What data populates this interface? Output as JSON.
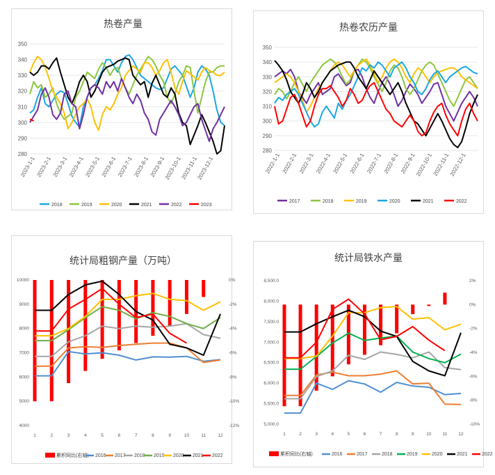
{
  "chart_data": [
    {
      "id": "c1",
      "type": "line",
      "title": "热卷产量",
      "xlabel": "",
      "ylabel": "",
      "x_ticks": [
        "2023-1-1",
        "2023-2-1",
        "2023-3-1",
        "2023-4-1",
        "2023-5-1",
        "2023-6-1",
        "2023-7-1",
        "2023-8-1",
        "2023-9-1",
        "2023-10-1",
        "2023-11-1",
        "2023-12-1"
      ],
      "ylim": [
        280,
        350
      ],
      "yticks": [
        280,
        290,
        300,
        310,
        320,
        330,
        340,
        350
      ],
      "grid": true,
      "legend": "bottom",
      "n_points": 52,
      "series": [
        {
          "name": "2018",
          "color": "#1aa7e0",
          "values": [
            306,
            308,
            316,
            322,
            312,
            310,
            314,
            318,
            320,
            319,
            312,
            304,
            300,
            297,
            310,
            316,
            322,
            324,
            328,
            333,
            340,
            340,
            336,
            332,
            338,
            342,
            343,
            340,
            335,
            330,
            328,
            326,
            324,
            322,
            321,
            322,
            328,
            334,
            336,
            333,
            330,
            323,
            316,
            322,
            332,
            336,
            334,
            330,
            320,
            308,
            300,
            298
          ]
        },
        {
          "name": "2019",
          "color": "#8cc63f",
          "values": [
            318,
            326,
            322,
            324,
            316,
            318,
            322,
            312,
            306,
            302,
            304,
            306,
            316,
            320,
            326,
            332,
            330,
            328,
            334,
            338,
            335,
            330,
            334,
            335,
            328,
            322,
            318,
            324,
            330,
            334,
            338,
            342,
            340,
            336,
            330,
            326,
            316,
            312,
            318,
            326,
            330,
            336,
            335,
            320,
            306,
            316,
            326,
            332,
            332,
            335,
            336,
            336
          ]
        },
        {
          "name": "2020",
          "color": "#ffc000",
          "values": [
            332,
            338,
            342,
            340,
            335,
            328,
            320,
            316,
            312,
            306,
            296,
            300,
            305,
            310,
            312,
            315,
            310,
            300,
            295,
            305,
            310,
            308,
            312,
            318,
            322,
            330,
            333,
            336,
            334,
            332,
            338,
            338,
            335,
            330,
            333,
            338,
            340,
            332,
            322,
            318,
            326,
            333,
            331,
            329,
            327,
            332,
            335,
            333,
            332,
            330,
            330,
            332
          ]
        },
        {
          "name": "2021",
          "color": "#000000",
          "values": [
            332,
            330,
            332,
            336,
            336,
            334,
            338,
            341,
            332,
            324,
            316,
            312,
            318,
            326,
            330,
            326,
            316,
            320,
            326,
            332,
            335,
            336,
            337,
            339,
            340,
            341,
            340,
            330,
            327,
            324,
            326,
            316,
            325,
            330,
            324,
            318,
            316,
            322,
            318,
            306,
            300,
            298,
            286,
            292,
            298,
            305,
            300,
            294,
            288,
            280,
            282,
            298
          ]
        },
        {
          "name": "2022",
          "color": "#7030a0",
          "values": [
            300,
            304,
            308,
            318,
            322,
            316,
            305,
            302,
            306,
            318,
            320,
            312,
            310,
            296,
            305,
            316,
            322,
            324,
            322,
            318,
            326,
            322,
            326,
            320,
            328,
            322,
            316,
            312,
            318,
            314,
            306,
            302,
            294,
            292,
            302,
            306,
            310,
            314,
            310,
            305,
            298,
            300,
            305,
            310,
            312,
            302,
            295,
            288,
            296,
            300,
            305,
            310
          ]
        },
        {
          "name": "2023",
          "color": "#ff0000",
          "values": [
            302,
            301
          ]
        }
      ]
    },
    {
      "id": "c2",
      "type": "line",
      "title": "热卷农历产量",
      "xlabel": "",
      "ylabel": "",
      "x_ticks": [
        "2022-1-1",
        "2022-2-1",
        "2022-3-1",
        "2022-4-1",
        "2022-5-1",
        "2022-6-1",
        "2022-7-1",
        "2022-8-1",
        "2022-9-1",
        "2022-10-1",
        "2022-11-1",
        "2022-12-1"
      ],
      "ylim": [
        280,
        350
      ],
      "yticks": [
        280,
        290,
        300,
        310,
        320,
        330,
        340,
        350
      ],
      "grid": true,
      "legend": "bottom",
      "n_points": 52,
      "series": [
        {
          "name": "2017",
          "color": "#7030a0",
          "values": [
            330,
            332,
            334,
            332,
            335,
            330,
            320,
            316,
            312,
            318,
            322,
            326,
            318,
            320,
            322,
            330,
            332,
            328,
            324,
            326,
            334,
            335,
            330,
            322,
            316,
            312,
            320,
            326,
            330,
            325,
            318,
            310,
            314,
            320,
            325,
            322,
            318,
            312,
            316,
            320,
            325,
            326,
            318,
            310,
            305,
            300,
            306,
            312,
            316,
            320,
            316,
            310
          ]
        },
        {
          "name": "2018",
          "color": "#8cc63f",
          "values": [
            318,
            322,
            320,
            315,
            320,
            326,
            330,
            325,
            320,
            326,
            330,
            334,
            338,
            340,
            342,
            340,
            336,
            330,
            325,
            328,
            334,
            338,
            342,
            340,
            336,
            330,
            325,
            320,
            326,
            334,
            338,
            336,
            330,
            322,
            318,
            322,
            328,
            334,
            338,
            340,
            338,
            332,
            326,
            320,
            314,
            310,
            316,
            322,
            328,
            330,
            326,
            322
          ]
        },
        {
          "name": "2019",
          "color": "#ffc000",
          "values": [
            326,
            328,
            330,
            332,
            330,
            326,
            320,
            314,
            306,
            310,
            316,
            322,
            326,
            330,
            334,
            338,
            340,
            338,
            334,
            330,
            334,
            338,
            340,
            342,
            338,
            332,
            326,
            330,
            336,
            340,
            342,
            340,
            336,
            330,
            326,
            332,
            336,
            334,
            330,
            326,
            330,
            333,
            334,
            335,
            336,
            336,
            334,
            330,
            328,
            326,
            324,
            322
          ]
        },
        {
          "name": "2020",
          "color": "#1aa7e0",
          "values": [
            312,
            316,
            314,
            318,
            320,
            322,
            318,
            312,
            306,
            300,
            296,
            298,
            306,
            310,
            306,
            302,
            312,
            308,
            314,
            318,
            324,
            330,
            336,
            334,
            338,
            336,
            340,
            338,
            334,
            330,
            336,
            338,
            340,
            336,
            330,
            326,
            320,
            318,
            322,
            328,
            332,
            334,
            330,
            326,
            330,
            332,
            334,
            336,
            337,
            335,
            333,
            332
          ]
        },
        {
          "name": "2021",
          "color": "#000000",
          "values": [
            341,
            338,
            334,
            328,
            320,
            316,
            312,
            318,
            326,
            322,
            316,
            320,
            326,
            330,
            334,
            336,
            338,
            339,
            340,
            340,
            336,
            330,
            326,
            322,
            328,
            334,
            330,
            326,
            322,
            318,
            322,
            326,
            320,
            312,
            306,
            300,
            298,
            294,
            290,
            295,
            300,
            305,
            300,
            294,
            288,
            284,
            282,
            286,
            295,
            305,
            312,
            318
          ]
        },
        {
          "name": "2022",
          "color": "#ff0000",
          "values": [
            310,
            298,
            300,
            308,
            316,
            318,
            312,
            304,
            296,
            300,
            310,
            318,
            322,
            322,
            324,
            320,
            316,
            310,
            314,
            322,
            318,
            312,
            314,
            320,
            324,
            326,
            320,
            314,
            308,
            305,
            300,
            298,
            296,
            300,
            304,
            300,
            293,
            290,
            292,
            300,
            306,
            310,
            312,
            304,
            298,
            294,
            290,
            300,
            308,
            312,
            305,
            300
          ]
        }
      ]
    },
    {
      "id": "c3",
      "type": "bar+line",
      "title": "统计局粗钢产量（万吨）",
      "xlabel": "",
      "ylabel": "",
      "categories": [
        "1",
        "2",
        "3",
        "4",
        "5",
        "6",
        "7",
        "8",
        "9",
        "10",
        "11",
        "12"
      ],
      "ylim": [
        4000,
        10000
      ],
      "yticks": [
        4000,
        5000,
        6000,
        7000,
        8000,
        9000,
        10000
      ],
      "y2lim": [
        -12,
        0
      ],
      "y2ticks": [
        "-12%",
        "-10%",
        "-8%",
        "-6%",
        "-4%",
        "-2%",
        "0%"
      ],
      "grid": false,
      "legend": "bottom",
      "bar_series": {
        "name": "累积同比(右轴)",
        "color": "#ff0000",
        "values": [
          -10,
          -10,
          -8.5,
          -7.5,
          -6.5,
          -5.8,
          -5.2,
          -4.6,
          -3.8,
          -2.8,
          -1.4,
          null
        ]
      },
      "series": [
        {
          "name": "2016",
          "color": "#4f8fd0",
          "values": [
            6050,
            6050,
            7050,
            6950,
            7000,
            6900,
            6700,
            6830,
            6820,
            6850,
            6650,
            6720
          ]
        },
        {
          "name": "2017",
          "color": "#ed7d31",
          "values": [
            6450,
            6450,
            7200,
            7250,
            7220,
            7300,
            7350,
            7400,
            7400,
            7200,
            6600,
            6700
          ]
        },
        {
          "name": "2018",
          "color": "#a5a5a5",
          "values": [
            6850,
            6850,
            7450,
            7700,
            8100,
            8000,
            8100,
            8050,
            8100,
            8200,
            7750,
            7600
          ]
        },
        {
          "name": "2019",
          "color": "#70ad47",
          "values": [
            7500,
            7500,
            7950,
            8450,
            8900,
            8750,
            8400,
            8650,
            8500,
            8200,
            8000,
            8450
          ]
        },
        {
          "name": "2020",
          "color": "#ffc000",
          "values": [
            7700,
            7700,
            8000,
            8500,
            9200,
            9200,
            9350,
            9450,
            9200,
            9150,
            8750,
            9100
          ]
        },
        {
          "name": "2021",
          "color": "#000000",
          "values": [
            8750,
            8750,
            9400,
            9800,
            9950,
            9400,
            8700,
            8350,
            7350,
            7200,
            6900,
            8600
          ]
        },
        {
          "name": "2022",
          "color": "#ff0000",
          "values": [
            7900,
            7900,
            8800,
            9200,
            9650,
            9000,
            8450,
            8600,
            7800,
            7400,
            null,
            null
          ]
        }
      ]
    },
    {
      "id": "c4",
      "type": "bar+line",
      "title": "统计局铁水产量",
      "xlabel": "",
      "ylabel": "",
      "categories": [
        "1",
        "2",
        "3",
        "4",
        "5",
        "6",
        "7",
        "8",
        "9",
        "10",
        "11",
        "12"
      ],
      "ylim": [
        5000,
        8500
      ],
      "yticks": [
        "5,000.0",
        "5,500.0",
        "6,000.0",
        "6,500.0",
        "7,000.0",
        "7,500.0",
        "8,000.0",
        "8,500.0"
      ],
      "y2lim": [
        -10,
        2
      ],
      "y2ticks": [
        "-10%",
        "-8%",
        "-6%",
        "-4%",
        "-2%",
        "0%",
        "2%"
      ],
      "grid": false,
      "legend": "bottom",
      "bar_series": {
        "name": "累积同比(右轴)",
        "color": "#ff0000",
        "values": [
          -8.5,
          -8.5,
          -7.2,
          -6.0,
          -5.0,
          -4.2,
          -3.4,
          -2.4,
          -0.8,
          0.0,
          1.0,
          null
        ]
      },
      "series": [
        {
          "name": "2016",
          "color": "#4f8fd0",
          "values": [
            5270,
            5270,
            6000,
            5850,
            6060,
            5980,
            5780,
            6020,
            5930,
            5900,
            5720,
            5750
          ]
        },
        {
          "name": "2017",
          "color": "#ed7d31",
          "values": [
            5700,
            5700,
            6200,
            6270,
            6180,
            6180,
            6220,
            6300,
            5980,
            6000,
            5490,
            5480
          ]
        },
        {
          "name": "2018",
          "color": "#a5a5a5",
          "values": [
            5620,
            5620,
            6160,
            6300,
            6680,
            6580,
            6760,
            6700,
            6620,
            6760,
            6380,
            6330
          ]
        },
        {
          "name": "2019",
          "color": "#00b050",
          "values": [
            6340,
            6340,
            6650,
            6980,
            7220,
            7040,
            7100,
            7150,
            6760,
            6600,
            6500,
            6710
          ]
        },
        {
          "name": "2020",
          "color": "#ffc000",
          "values": [
            6600,
            6600,
            6660,
            7150,
            7720,
            7720,
            7840,
            7870,
            7560,
            7600,
            7300,
            7440
          ]
        },
        {
          "name": "2021",
          "color": "#000000",
          "values": [
            7250,
            7250,
            7450,
            7620,
            7780,
            7620,
            7270,
            7140,
            6530,
            6300,
            6180,
            7230
          ]
        },
        {
          "name": "2022",
          "color": "#ff0000",
          "values": [
            6620,
            6620,
            7000,
            7800,
            8050,
            7690,
            7060,
            7140,
            7380,
            7050,
            6790,
            null
          ]
        }
      ]
    }
  ]
}
